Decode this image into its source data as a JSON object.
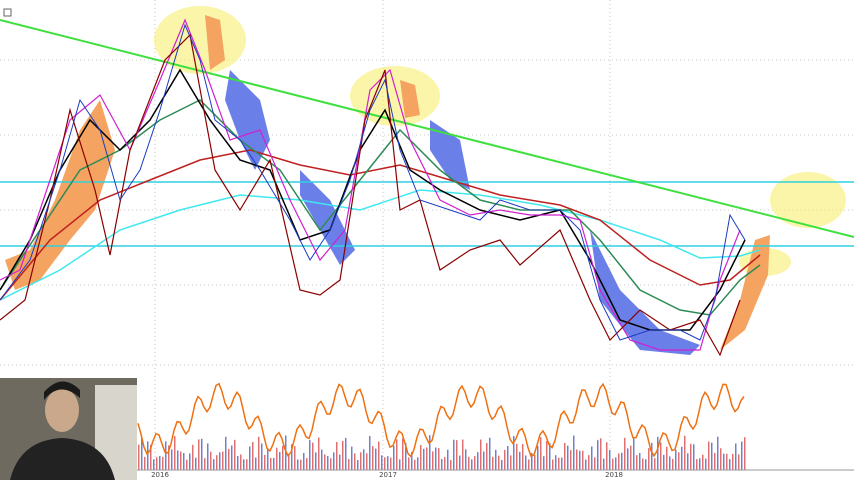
{
  "screen": {
    "x_axis_labels": [
      "2016",
      "2017",
      "2018"
    ]
  }
}
